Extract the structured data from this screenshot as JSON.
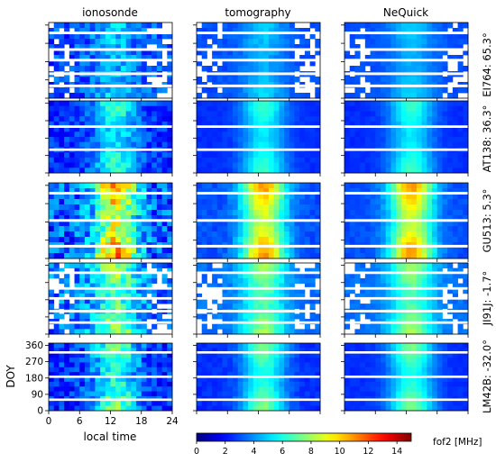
{
  "figure": {
    "column_titles": [
      "ionosonde",
      "tomography",
      "NeQuick"
    ],
    "row_labels": [
      "EI764: 65.3°",
      "AT138: 36.3°",
      "GU513: 5.3°",
      "JI91J: -1.7°",
      "LM42B: -32.0°"
    ],
    "x_label": "local time",
    "y_label": "DOY",
    "colorbar_label": "fof2 [MHz]"
  },
  "chart_data": {
    "type": "heatmap",
    "colormap": "jet",
    "x_axis": {
      "label": "local time",
      "range": [
        0,
        24
      ],
      "ticks": [
        0,
        6,
        12,
        18,
        24
      ]
    },
    "y_axis": {
      "label": "DOY",
      "range": [
        0,
        365
      ],
      "ticks": [
        0,
        90,
        180,
        270,
        360
      ]
    },
    "colorbar": {
      "label": "fof2 [MHz]",
      "range": [
        0,
        15
      ],
      "ticks": [
        0,
        2,
        4,
        6,
        8,
        10,
        12,
        14
      ]
    },
    "columns": [
      "ionosonde",
      "tomography",
      "NeQuick"
    ],
    "stations": [
      {
        "label": "EI764: 65.3°",
        "day_peak": 5.0,
        "night": 3.0,
        "sources": {
          "ionosonde": {
            "sparse": true,
            "noise": 1.2
          },
          "tomography": {
            "sparse": true,
            "noise": 0.3
          },
          "NeQuick": {
            "sparse": true,
            "noise": 0.2
          }
        }
      },
      {
        "label": "AT138: 36.3°",
        "day_peak": 6.5,
        "night": 2.5,
        "sources": {
          "ionosonde": {
            "sparse": false,
            "noise": 1.0
          },
          "tomography": {
            "sparse": false,
            "noise": 0.2
          },
          "NeQuick": {
            "sparse": false,
            "noise": 0.2
          }
        }
      },
      {
        "label": "GU513: 5.3°",
        "day_peak": 11.0,
        "night": 3.0,
        "sources": {
          "ionosonde": {
            "sparse": false,
            "noise": 1.8
          },
          "tomography": {
            "sparse": false,
            "noise": 0.4
          },
          "NeQuick": {
            "sparse": false,
            "noise": 0.3
          }
        }
      },
      {
        "label": "JI91J: -1.7°",
        "day_peak": 8.0,
        "night": 3.5,
        "sources": {
          "ionosonde": {
            "sparse": true,
            "noise": 1.5
          },
          "tomography": {
            "sparse": true,
            "noise": 0.4
          },
          "NeQuick": {
            "sparse": true,
            "noise": 0.3
          }
        }
      },
      {
        "label": "LM42B: -32.0°",
        "day_peak": 7.5,
        "night": 2.5,
        "sources": {
          "ionosonde": {
            "sparse": false,
            "noise": 1.3
          },
          "tomography": {
            "sparse": false,
            "noise": 0.3
          },
          "NeQuick": {
            "sparse": false,
            "noise": 0.2
          }
        }
      }
    ]
  }
}
